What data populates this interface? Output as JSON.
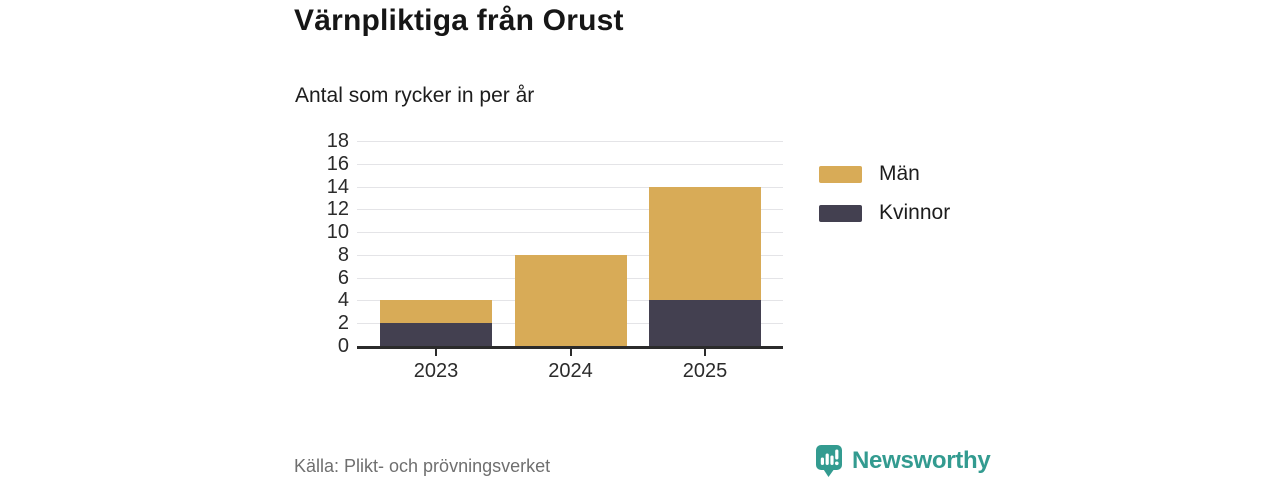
{
  "header": {
    "title": "Värnpliktiga från Orust",
    "subtitle": "Antal som rycker in per år"
  },
  "chart_data": {
    "type": "bar",
    "stacked": true,
    "title": "Värnpliktiga från Orust",
    "subtitle": "Antal som rycker in per år",
    "categories": [
      "2023",
      "2024",
      "2025"
    ],
    "series": [
      {
        "name": "Kvinnor",
        "color": "#434050",
        "values": [
          2,
          0,
          4
        ]
      },
      {
        "name": "Män",
        "color": "#d8ab57",
        "values": [
          2,
          8,
          10
        ]
      }
    ],
    "stack_totals": [
      4,
      8,
      14
    ],
    "xlabel": "",
    "ylabel": "",
    "ylim": [
      0,
      18
    ],
    "yticks": [
      0,
      2,
      4,
      6,
      8,
      10,
      12,
      14,
      16,
      18
    ],
    "grid": "horizontal",
    "legend_position": "right",
    "legend_order": [
      "Män",
      "Kvinnor"
    ]
  },
  "legend": {
    "items": [
      {
        "label": "Män",
        "color": "#d8ab57"
      },
      {
        "label": "Kvinnor",
        "color": "#434050"
      }
    ]
  },
  "footer": {
    "source": "Källa: Plikt- och prövningsverket",
    "brand": "Newsworthy"
  },
  "colors": {
    "men_gold": "#d8ab57",
    "women_dark": "#434050",
    "brand_teal": "#339b90",
    "gridline": "#e4e4e7",
    "axis": "#2b2b2b",
    "text": "#1d1d1d",
    "source_gray": "#6f6f6f"
  }
}
